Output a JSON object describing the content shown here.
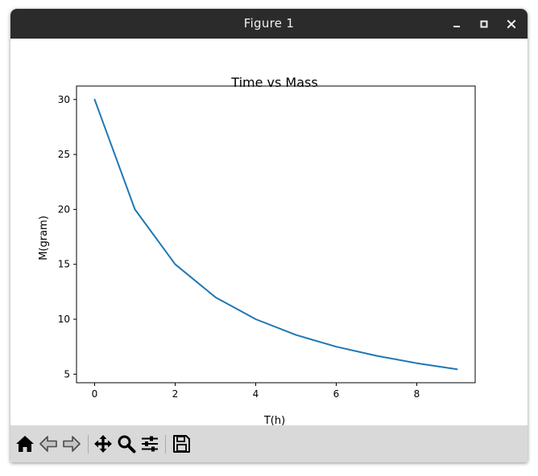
{
  "window": {
    "title": "Figure 1",
    "controls": [
      "minimize-icon",
      "maximize-icon",
      "close-icon"
    ]
  },
  "toolbar": {
    "buttons": [
      "home-icon",
      "back-icon",
      "forward-icon",
      "pan-icon",
      "zoom-icon",
      "configure-subplots-icon",
      "save-icon"
    ]
  },
  "chart_data": {
    "type": "line",
    "title": "Time vs Mass",
    "xlabel": "T(h)",
    "ylabel": "M(gram)",
    "x": [
      0,
      1,
      2,
      3,
      4,
      5,
      6,
      7,
      8,
      9
    ],
    "series": [
      {
        "values": [
          30,
          20,
          15,
          12,
          10,
          8.57,
          7.5,
          6.67,
          6,
          5.45
        ],
        "color": "#1f77b4"
      }
    ],
    "xticks": [
      0,
      2,
      4,
      6,
      8
    ],
    "yticks": [
      5,
      10,
      15,
      20,
      25,
      30
    ],
    "xlim": [
      -0.45,
      9.45
    ],
    "ylim": [
      4.22,
      31.23
    ],
    "grid": false
  }
}
